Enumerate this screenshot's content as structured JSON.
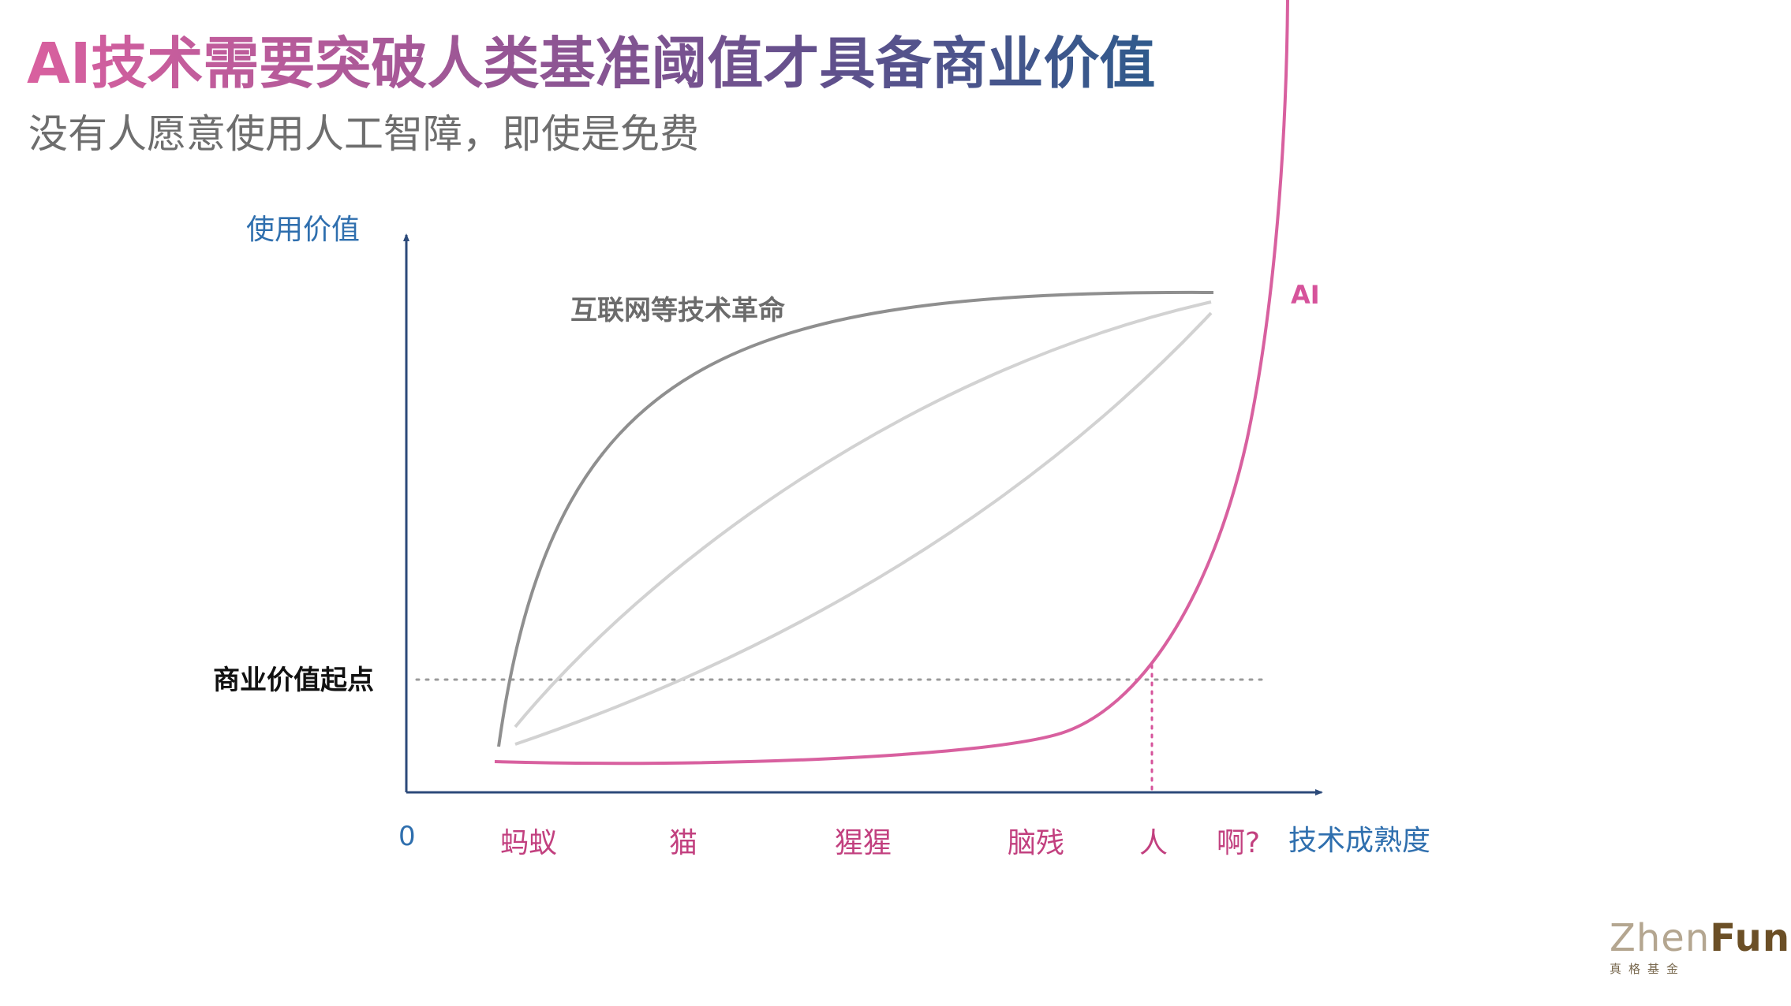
{
  "slide": {
    "title": "AI技术需要突破人类基准阈值才具备商业价值",
    "subtitle": "没有人愿意使用人工智障，即使是免费"
  },
  "chart_data": {
    "type": "line",
    "ylabel": "使用价值",
    "xlabel": "技术成熟度",
    "origin_label": "0",
    "x_tick_labels": [
      "蚂蚁",
      "猫",
      "猩猩",
      "脑残",
      "人",
      "啊?"
    ],
    "threshold": {
      "label": "商业价值起点",
      "crosses_at": "人"
    },
    "series": [
      {
        "name": "互联网等技术革命",
        "color": "#8f8f8f"
      },
      {
        "name": "",
        "color": "#d2d2d2"
      },
      {
        "name": "",
        "color": "#d2d2d2"
      },
      {
        "name": "AI",
        "color": "#d8609f"
      }
    ]
  },
  "logo": {
    "brand_light": "Zhen",
    "brand_bold": "Fund",
    "tagline": "真格基金"
  }
}
